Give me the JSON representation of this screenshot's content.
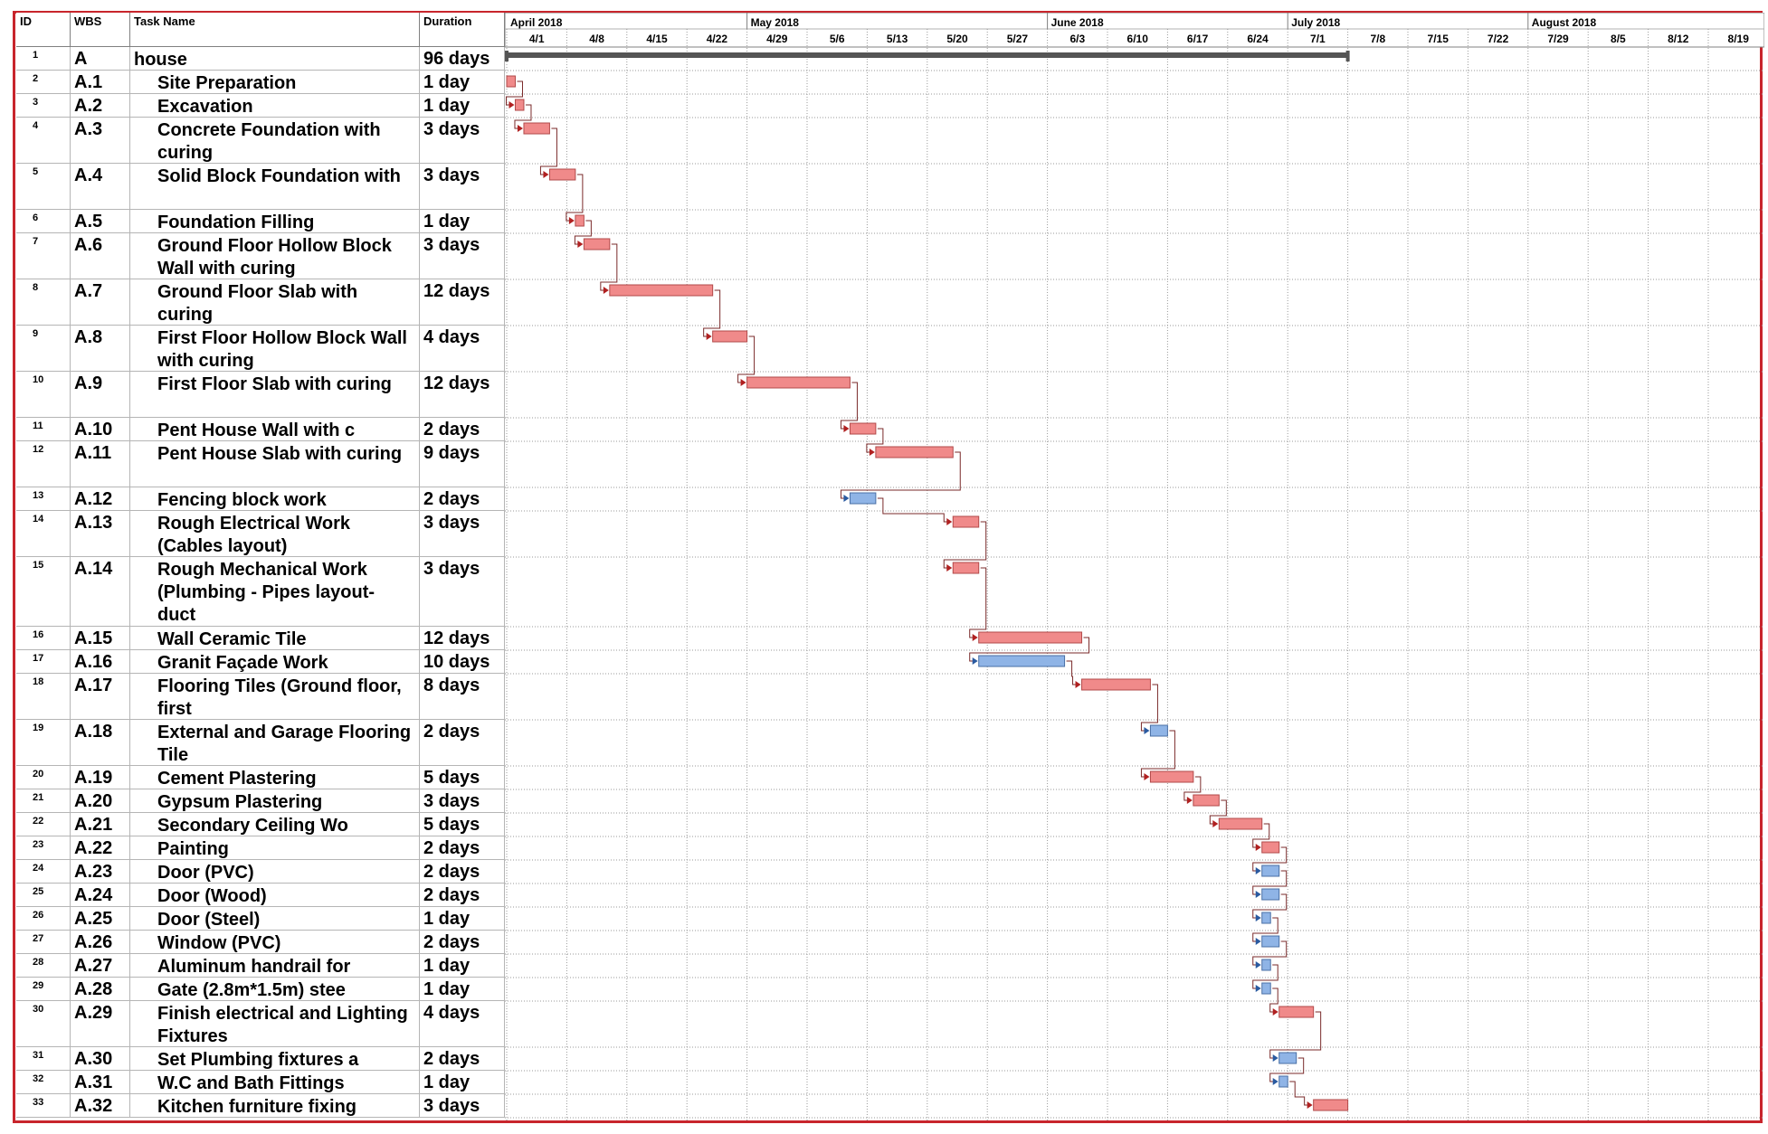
{
  "columns": {
    "id": "ID",
    "wbs": "WBS",
    "name": "Task Name",
    "duration": "Duration"
  },
  "timescale": {
    "months": [
      "April 2018",
      "May 2018",
      "June 2018",
      "July 2018",
      "August 2018"
    ],
    "weeks": [
      "4/1",
      "4/8",
      "4/15",
      "4/22",
      "4/29",
      "5/6",
      "5/13",
      "5/20",
      "5/27",
      "6/3",
      "6/10",
      "6/17",
      "6/24",
      "7/1",
      "7/8",
      "7/15",
      "7/22",
      "7/29",
      "8/5",
      "8/12",
      "8/19"
    ]
  },
  "colors": {
    "critical": "#f08a8a",
    "noncritical": "#8fb4e6",
    "summary": "#555555",
    "link": "#7a2a2a",
    "frame": "#c8252c"
  },
  "tasks": [
    {
      "id": "1",
      "wbs": "A",
      "name": "house",
      "duration": "96 days"
    },
    {
      "id": "2",
      "wbs": "A.1",
      "name": "Site Preparation",
      "duration": "1 day"
    },
    {
      "id": "3",
      "wbs": "A.2",
      "name": "Excavation",
      "duration": "1 day"
    },
    {
      "id": "4",
      "wbs": "A.3",
      "name": "Concrete Foundation with curing",
      "duration": "3 days"
    },
    {
      "id": "5",
      "wbs": "A.4",
      "name": "Solid Block Foundation with",
      "duration": "3 days"
    },
    {
      "id": "6",
      "wbs": "A.5",
      "name": "Foundation Filling",
      "duration": "1 day"
    },
    {
      "id": "7",
      "wbs": "A.6",
      "name": "Ground Floor Hollow Block Wall with curing",
      "duration": "3 days"
    },
    {
      "id": "8",
      "wbs": "A.7",
      "name": "Ground Floor Slab with curing",
      "duration": "12 days"
    },
    {
      "id": "9",
      "wbs": "A.8",
      "name": "First Floor Hollow Block Wall with curing",
      "duration": "4 days"
    },
    {
      "id": "10",
      "wbs": "A.9",
      "name": "First Floor Slab with curing",
      "duration": "12 days"
    },
    {
      "id": "11",
      "wbs": "A.10",
      "name": "Pent House Wall with c",
      "duration": "2 days"
    },
    {
      "id": "12",
      "wbs": "A.11",
      "name": "Pent House Slab with curing",
      "duration": "9 days"
    },
    {
      "id": "13",
      "wbs": "A.12",
      "name": "Fencing block work",
      "duration": "2 days"
    },
    {
      "id": "14",
      "wbs": "A.13",
      "name": "Rough Electrical Work (Cables layout)",
      "duration": "3 days"
    },
    {
      "id": "15",
      "wbs": "A.14",
      "name": "Rough Mechanical Work (Plumbing - Pipes layout- duct",
      "duration": "3 days"
    },
    {
      "id": "16",
      "wbs": "A.15",
      "name": "Wall Ceramic Tile",
      "duration": "12 days"
    },
    {
      "id": "17",
      "wbs": "A.16",
      "name": "Granit Façade Work",
      "duration": "10 days"
    },
    {
      "id": "18",
      "wbs": "A.17",
      "name": "Flooring Tiles (Ground floor, first",
      "duration": "8 days"
    },
    {
      "id": "19",
      "wbs": "A.18",
      "name": "External and Garage Flooring Tile",
      "duration": "2 days"
    },
    {
      "id": "20",
      "wbs": "A.19",
      "name": "Cement Plastering",
      "duration": "5 days"
    },
    {
      "id": "21",
      "wbs": "A.20",
      "name": "Gypsum Plastering",
      "duration": "3 days"
    },
    {
      "id": "22",
      "wbs": "A.21",
      "name": "Secondary Ceiling Wo",
      "duration": "5 days"
    },
    {
      "id": "23",
      "wbs": "A.22",
      "name": "Painting",
      "duration": "2 days"
    },
    {
      "id": "24",
      "wbs": "A.23",
      "name": "Door (PVC)",
      "duration": "2 days"
    },
    {
      "id": "25",
      "wbs": "A.24",
      "name": "Door (Wood)",
      "duration": "2 days"
    },
    {
      "id": "26",
      "wbs": "A.25",
      "name": "Door (Steel)",
      "duration": "1 day"
    },
    {
      "id": "27",
      "wbs": "A.26",
      "name": "Window (PVC)",
      "duration": "2 days"
    },
    {
      "id": "28",
      "wbs": "A.27",
      "name": "Aluminum handrail for",
      "duration": "1 day"
    },
    {
      "id": "29",
      "wbs": "A.28",
      "name": "Gate (2.8m*1.5m) stee",
      "duration": "1 day"
    },
    {
      "id": "30",
      "wbs": "A.29",
      "name": "Finish electrical and Lighting Fixtures",
      "duration": "4 days"
    },
    {
      "id": "31",
      "wbs": "A.30",
      "name": "Set Plumbing fixtures a",
      "duration": "2 days"
    },
    {
      "id": "32",
      "wbs": "A.31",
      "name": "W.C and Bath Fittings",
      "duration": "1 day"
    },
    {
      "id": "33",
      "wbs": "A.32",
      "name": "Kitchen furniture fixing",
      "duration": "3 days"
    }
  ]
}
